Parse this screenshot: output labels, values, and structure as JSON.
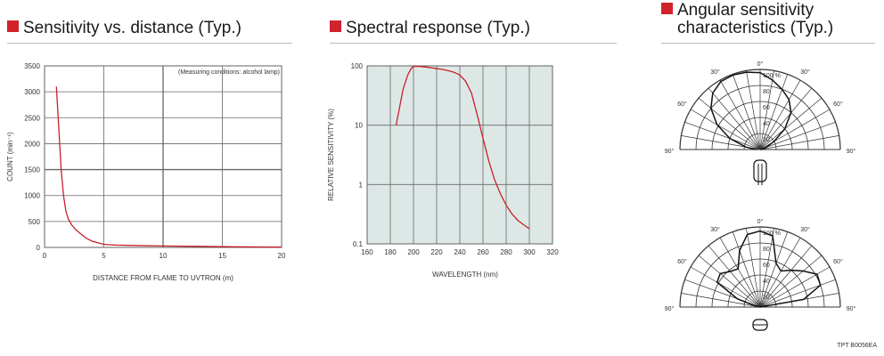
{
  "chart_data": [
    {
      "type": "line",
      "title": "Sensitivity vs. distance (Typ.)",
      "note": "(Measuring conditions: alcohol lamp)",
      "xlabel": "DISTANCE FROM FLAME TO UVTRON (m)",
      "ylabel": "COUNT (min⁻¹)",
      "xlim": [
        0,
        20
      ],
      "ylim": [
        0,
        3500
      ],
      "xticks": [
        "0",
        "5",
        "10",
        "15",
        "20"
      ],
      "yticks": [
        "0",
        "500",
        "1000",
        "1500",
        "2000",
        "2500",
        "3000",
        "3500"
      ],
      "series": [
        {
          "color": "#c8202a",
          "x": [
            1,
            1.2,
            1.4,
            1.6,
            1.8,
            2,
            2.3,
            2.6,
            3,
            3.5,
            4,
            5,
            6,
            8,
            10,
            13,
            16,
            20
          ],
          "y": [
            3100,
            2300,
            1500,
            1000,
            700,
            550,
            430,
            350,
            270,
            180,
            120,
            60,
            45,
            35,
            28,
            20,
            13,
            5
          ]
        }
      ]
    },
    {
      "type": "line",
      "title": "Spectral response (Typ.)",
      "xlabel": "WAVELENGTH (nm)",
      "ylabel": "RELATIVE SENSITIVITY (%)",
      "xlim": [
        160,
        320
      ],
      "ylim": [
        0.1,
        100
      ],
      "yscale": "log",
      "xticks": [
        "160",
        "180",
        "200",
        "220",
        "240",
        "260",
        "280",
        "300",
        "320"
      ],
      "yticks": [
        "0.1",
        "1",
        "10",
        "100"
      ],
      "series": [
        {
          "color": "#c8202a",
          "x": [
            185,
            188,
            191,
            195,
            198,
            200,
            205,
            210,
            215,
            220,
            225,
            230,
            235,
            240,
            245,
            250,
            255,
            260,
            265,
            270,
            275,
            280,
            285,
            290,
            295,
            300
          ],
          "y": [
            10,
            20,
            40,
            70,
            90,
            98,
            98,
            96,
            93,
            90,
            87,
            83,
            78,
            70,
            55,
            35,
            15,
            6,
            2.5,
            1.2,
            0.7,
            0.45,
            0.32,
            0.25,
            0.21,
            0.18
          ]
        }
      ]
    },
    {
      "type": "polar",
      "title_line1": "Angular sensitivity",
      "title_line2": "characteristics (Typ.)",
      "angle_labels": [
        "0°",
        "30°",
        "30°",
        "60°",
        "60°",
        "90°",
        "90°"
      ],
      "radial_labels": [
        "20",
        "40",
        "60",
        "80",
        "100 %"
      ],
      "diagrams": [
        {
          "name": "side-on",
          "angles": [
            -90,
            -80,
            -70,
            -60,
            -50,
            -40,
            -30,
            -20,
            -10,
            0,
            10,
            20,
            30,
            40,
            50,
            60,
            70,
            80,
            90
          ],
          "values": [
            5,
            18,
            40,
            62,
            80,
            92,
            98,
            99,
            98,
            96,
            88,
            80,
            72,
            60,
            40,
            20,
            8,
            3,
            0
          ]
        },
        {
          "name": "end-on",
          "angles": [
            -90,
            -80,
            -70,
            -60,
            -50,
            -40,
            -30,
            -20,
            -10,
            0,
            10,
            20,
            30,
            40,
            50,
            60,
            70,
            80,
            90
          ],
          "values": [
            0,
            5,
            30,
            62,
            65,
            58,
            55,
            75,
            92,
            95,
            90,
            58,
            52,
            60,
            70,
            82,
            80,
            55,
            0
          ]
        }
      ]
    }
  ],
  "figure_code": "TPT B0056EA"
}
